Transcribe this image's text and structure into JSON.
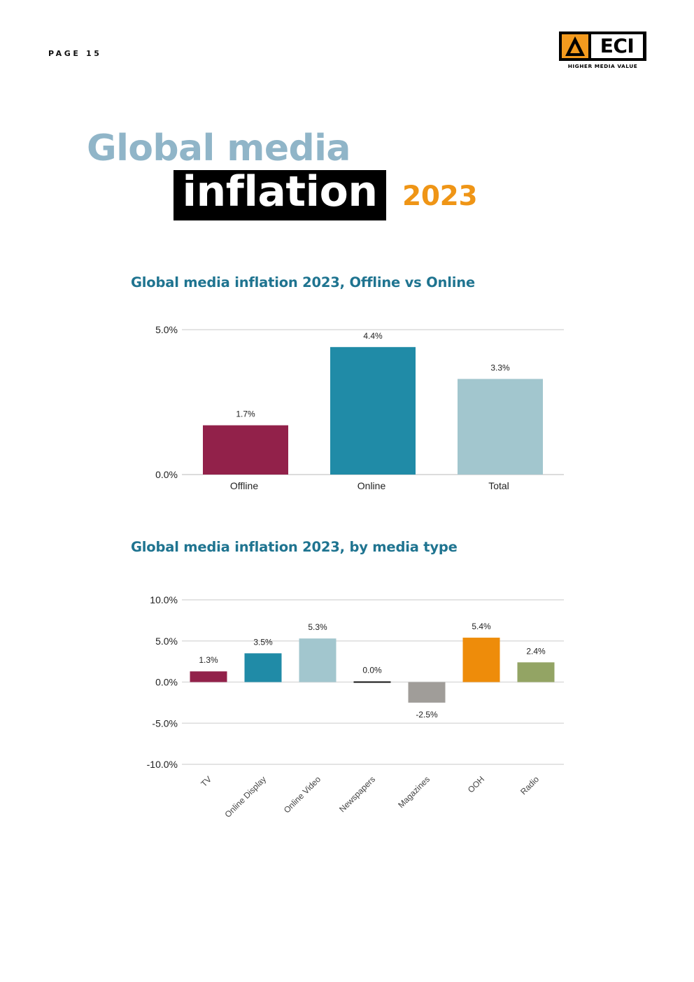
{
  "page": {
    "label": "PAGE 15"
  },
  "logo": {
    "text": "ECI",
    "tagline": "HIGHER MEDIA VALUE",
    "accent": "#f39a1e"
  },
  "heading": {
    "line1": "Global media",
    "line2": "inflation",
    "year": "2023"
  },
  "colors": {
    "title_light": "#90b5c8",
    "chart_title": "#1f7490",
    "year": "#ef9516",
    "grid": "#dcdcdc"
  },
  "chart_data": [
    {
      "type": "bar",
      "title": "Global media inflation 2023, Offline vs Online",
      "categories": [
        "Offline",
        "Online",
        "Total"
      ],
      "values": [
        1.7,
        4.4,
        3.3
      ],
      "data_labels": [
        "1.7%",
        "4.4%",
        "3.3%"
      ],
      "colors": [
        "#92214a",
        "#208ba7",
        "#a2c6ce"
      ],
      "yticks": [
        "0.0%",
        "5.0%"
      ],
      "ylim": [
        0,
        5
      ],
      "grid": true
    },
    {
      "type": "bar",
      "title": "Global media inflation 2023, by media type",
      "categories": [
        "TV",
        "Online Display",
        "Online Video",
        "Newspapers",
        "Magazines",
        "OOH",
        "Radio"
      ],
      "values": [
        1.3,
        3.5,
        5.3,
        0.0,
        -2.5,
        5.4,
        2.4
      ],
      "data_labels": [
        "1.3%",
        "3.5%",
        "5.3%",
        "0.0%",
        "-2.5%",
        "5.4%",
        "2.4%"
      ],
      "colors": [
        "#92214a",
        "#208ba7",
        "#a2c6ce",
        "#111111",
        "#a09d99",
        "#ee8c0a",
        "#93a464"
      ],
      "yticks": [
        "10.0%",
        "5.0%",
        "0.0%",
        "-5.0%",
        "-10.0%"
      ],
      "ylim": [
        -10,
        10
      ],
      "grid": true
    }
  ]
}
